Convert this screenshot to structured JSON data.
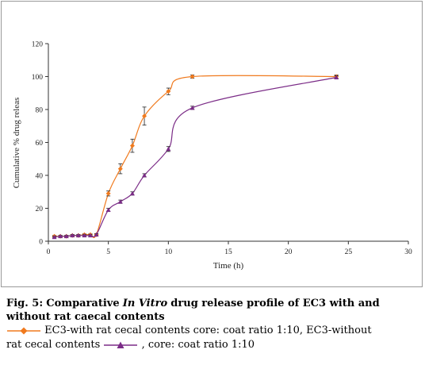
{
  "chart_data": {
    "type": "line",
    "xlabel": "Time (h)",
    "ylabel": "Cumulative % drug releas",
    "xlim": [
      0,
      30
    ],
    "ylim": [
      0,
      120
    ],
    "x_ticks": [
      0,
      5,
      10,
      15,
      20,
      25,
      30
    ],
    "y_ticks": [
      0,
      20,
      40,
      60,
      80,
      100,
      120
    ],
    "grid": false,
    "series": [
      {
        "color": "#f07a1e",
        "marker": "diamond",
        "x": [
          0.5,
          1,
          1.5,
          2,
          2.5,
          3,
          3.5,
          4,
          5,
          6,
          7,
          8,
          10,
          12,
          24
        ],
        "y": [
          3,
          3,
          3,
          3.5,
          3.5,
          4,
          4,
          4,
          29,
          44,
          58,
          76,
          91,
          100,
          100
        ],
        "error": [
          0.5,
          0.5,
          0.5,
          0.5,
          0.5,
          0.5,
          0.5,
          0.5,
          1.5,
          3,
          4,
          5.5,
          2,
          1,
          1
        ]
      },
      {
        "color": "#7b2c87",
        "marker": "triangle",
        "x": [
          0.5,
          1,
          1.5,
          2,
          2.5,
          3,
          3.5,
          4,
          5,
          6,
          7,
          8,
          10,
          12,
          24
        ],
        "y": [
          2.5,
          3,
          3,
          3.5,
          3.5,
          3.5,
          3.5,
          4,
          19,
          24,
          29,
          40,
          56,
          81,
          99.5
        ],
        "error": [
          0.5,
          0.5,
          0.5,
          0.5,
          0.5,
          0.5,
          0.5,
          0.5,
          1,
          1,
          1,
          1,
          1.5,
          1,
          1
        ]
      }
    ]
  },
  "caption": {
    "fig_label": "Fig. 5:",
    "title_part1": "Comparative",
    "title_italic": "In Vitro",
    "title_part2": "drug release profile of EC3 with and",
    "title_line2": "without rat caecal contents",
    "legend_text_1": "EC3-with rat cecal contents core: coat ratio 1:10, EC3-without",
    "legend_text_2_prefix": "rat cecal contents",
    "legend_text_2_suffix": ", core: coat ratio 1:10"
  }
}
